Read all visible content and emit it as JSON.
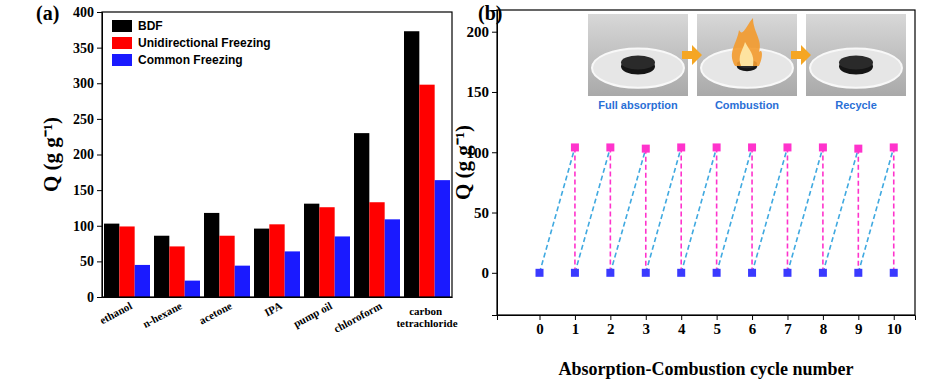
{
  "chart_data": [
    {
      "type": "bar",
      "title": "(a)",
      "y_label": "Q (g g⁻¹)",
      "categories": [
        "ethanol",
        "n-hexane",
        "acetone",
        "IPA",
        "pump oil",
        "chloroform",
        "carbon tetrachloride"
      ],
      "series": [
        {
          "name": "BDF",
          "color": "#000000",
          "values": [
            103,
            86,
            118,
            96,
            131,
            230,
            373
          ]
        },
        {
          "name": "Unidirectional Freezing",
          "color": "#ff0000",
          "values": [
            99,
            71,
            86,
            102,
            126,
            133,
            298
          ]
        },
        {
          "name": "Common Freezing",
          "color": "#1a1aff",
          "values": [
            45,
            23,
            44,
            64,
            85,
            109,
            164
          ]
        }
      ],
      "ylim": [
        0,
        400
      ],
      "yticks": [
        0,
        50,
        100,
        150,
        200,
        250,
        300,
        350,
        400
      ],
      "legend": "top-left"
    },
    {
      "type": "scatter",
      "title": "(b)",
      "x_label": "Absorption-Combustion cycle number",
      "y_label": "Q (g g⁻¹)",
      "annotations": [
        "Full absorption",
        "Combustion",
        "Recycle"
      ],
      "xlim": [
        -1.2,
        10.6
      ],
      "xticks": [
        0,
        1,
        2,
        3,
        4,
        5,
        6,
        7,
        8,
        9,
        10
      ],
      "ylim": [
        -35,
        218
      ],
      "yticks": [
        0,
        50,
        100,
        150,
        200
      ],
      "line_style": "dashed",
      "series": [
        {
          "color": "#3a3aff",
          "marker": "square",
          "x": [
            0,
            1,
            2,
            3,
            4,
            5,
            6,
            7,
            8,
            9,
            10
          ],
          "values": [
            0,
            0,
            0,
            0,
            0,
            0,
            0,
            0,
            0,
            0,
            0
          ]
        },
        {
          "color": "#ff33cc",
          "marker": "square",
          "x": [
            1,
            2,
            3,
            4,
            5,
            6,
            7,
            8,
            9,
            10
          ],
          "values": [
            104,
            104,
            103,
            104,
            104,
            104,
            104,
            104,
            103,
            104
          ]
        }
      ]
    }
  ]
}
